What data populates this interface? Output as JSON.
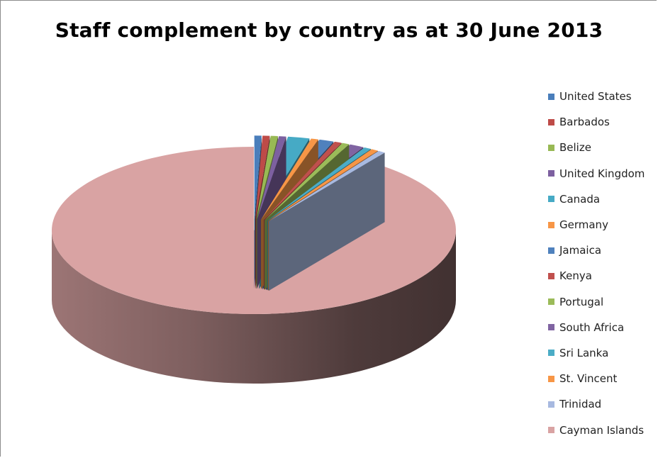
{
  "chart_data": {
    "type": "pie",
    "title": "Staff complement by country as at 30 June 2013",
    "legend_position": "right",
    "slices": [
      {
        "label": "United States",
        "value": 1,
        "color": "#4A7EBB"
      },
      {
        "label": "Barbados",
        "value": 1,
        "color": "#BE4B48"
      },
      {
        "label": "Belize",
        "value": 1,
        "color": "#98B954"
      },
      {
        "label": "United Kingdom",
        "value": 1,
        "color": "#7D60A0"
      },
      {
        "label": "Canada",
        "value": 3,
        "color": "#46AAC5"
      },
      {
        "label": "Germany",
        "value": 1,
        "color": "#F79646"
      },
      {
        "label": "Jamaica",
        "value": 2,
        "color": "#4F81BD"
      },
      {
        "label": "Kenya",
        "value": 1,
        "color": "#C0504D"
      },
      {
        "label": "Portugal",
        "value": 1,
        "color": "#9BBB59"
      },
      {
        "label": "South Africa",
        "value": 2,
        "color": "#8064A2"
      },
      {
        "label": "Sri Lanka",
        "value": 1,
        "color": "#4BACC6"
      },
      {
        "label": "St. Vincent",
        "value": 1,
        "color": "#F79646"
      },
      {
        "label": "Trinidad",
        "value": 1,
        "color": "#A7B9E0"
      },
      {
        "label": "Cayman Islands",
        "value": 158,
        "color": "#D9A3A3"
      }
    ]
  }
}
